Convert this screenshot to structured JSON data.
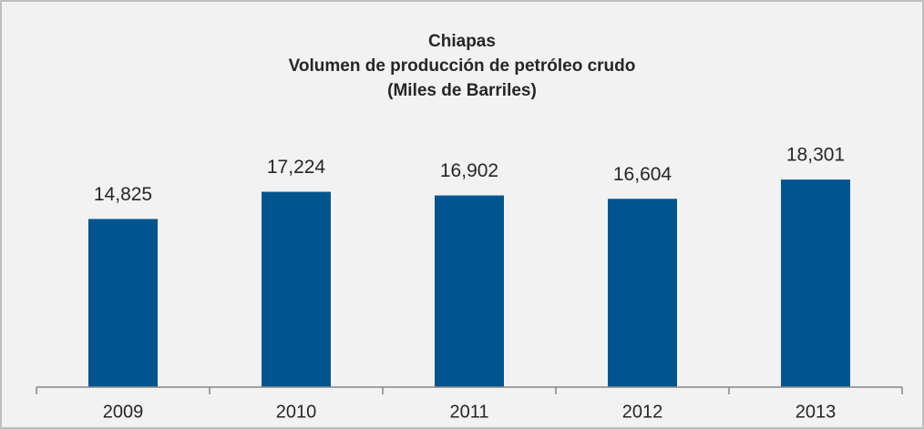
{
  "chart_data": {
    "type": "bar",
    "title": [
      "Chiapas",
      "Volumen de producción de petróleo crudo",
      "(Miles de Barriles)"
    ],
    "categories": [
      "2009",
      "2010",
      "2011",
      "2012",
      "2013"
    ],
    "values": [
      14825,
      17224,
      16902,
      16604,
      18301
    ],
    "value_labels": [
      "14,825",
      "17,224",
      "16,902",
      "16,604",
      "18,301"
    ],
    "color": "#00558f",
    "ylim": [
      0,
      20000
    ]
  }
}
